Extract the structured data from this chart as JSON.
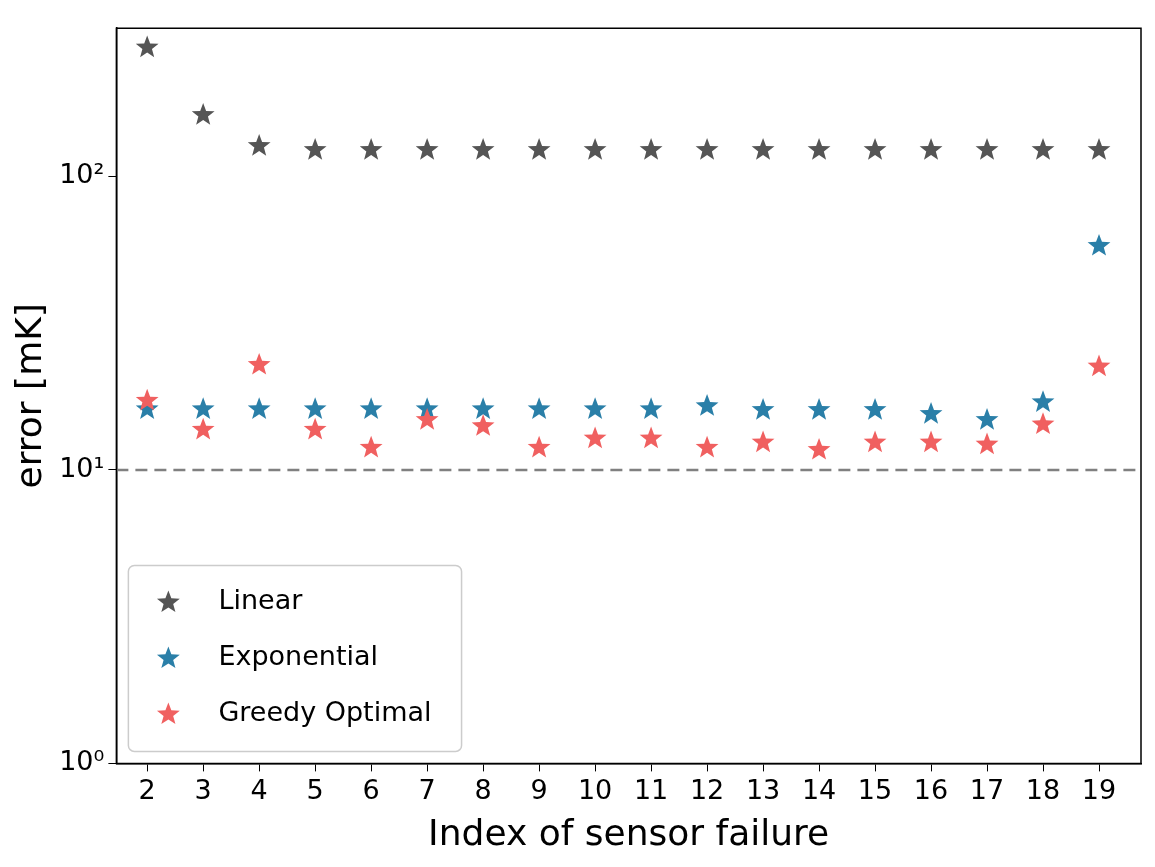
{
  "chart_data": {
    "type": "scatter",
    "xlabel": "Index of sensor failure",
    "ylabel": "error [mK]",
    "x": [
      2,
      3,
      4,
      5,
      6,
      7,
      8,
      9,
      10,
      11,
      12,
      13,
      14,
      15,
      16,
      17,
      18,
      19
    ],
    "series": [
      {
        "name": "Linear",
        "color": "#555555",
        "values": [
          275,
          162,
          127,
          123,
          123,
          123,
          123,
          123,
          123,
          123,
          123,
          123,
          123,
          123,
          123,
          123,
          123,
          123
        ]
      },
      {
        "name": "Exponential",
        "color": "#2a7fa8",
        "values": [
          16.1,
          16.1,
          16.1,
          16.1,
          16.1,
          16.1,
          16.1,
          16.1,
          16.1,
          16.1,
          16.5,
          16.0,
          16.0,
          16.0,
          15.5,
          14.8,
          17.0,
          58
        ]
      },
      {
        "name": "Greedy Optimal",
        "color": "#f06060",
        "values": [
          17.2,
          13.7,
          22.8,
          13.7,
          11.9,
          14.8,
          14.1,
          11.9,
          12.8,
          12.8,
          11.9,
          12.4,
          11.7,
          12.4,
          12.4,
          12.2,
          14.3,
          22.5
        ]
      }
    ],
    "log": "y",
    "ylim": [
      1,
      320
    ],
    "yticks": [
      {
        "value": 1,
        "label": "10⁰"
      },
      {
        "value": 10,
        "label": "10¹"
      },
      {
        "value": 100,
        "label": "10²"
      }
    ],
    "xlim": [
      1.45,
      19.75
    ],
    "xticks": [
      2,
      3,
      4,
      5,
      6,
      7,
      8,
      9,
      10,
      11,
      12,
      13,
      14,
      15,
      16,
      17,
      18,
      19
    ],
    "ref_lines": [
      {
        "axis": "y",
        "value": 10,
        "color": "#808080",
        "line_style": "dashed"
      }
    ],
    "marker": "star",
    "legend": "bottom left",
    "grid": false
  }
}
